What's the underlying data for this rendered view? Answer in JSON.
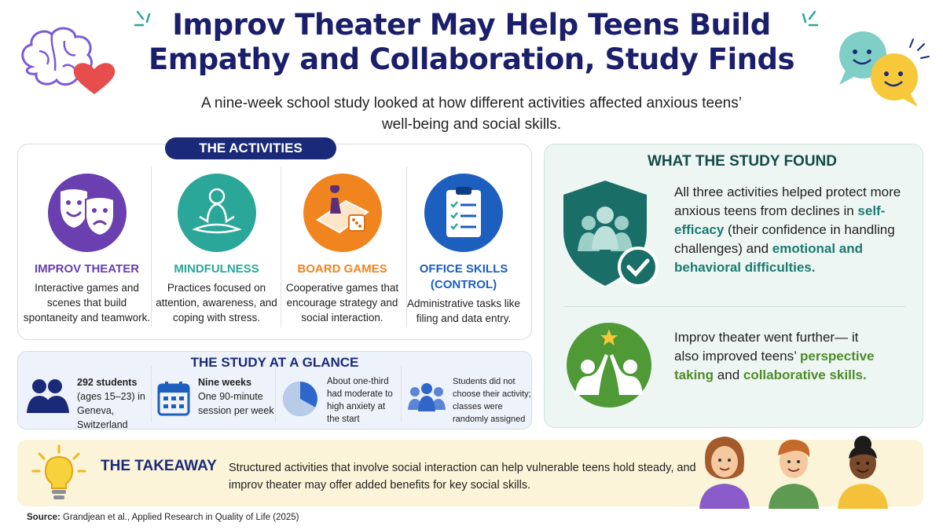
{
  "title": "Improv Theater May Help Teens Build Empathy and Collaboration, Study Finds",
  "subtitle": "A nine-week school study looked at how different activities affected anxious teens’ well-being and social skills.",
  "activities": {
    "heading": "THE ACTIVITIES",
    "items": [
      {
        "title": "IMPROV THEATER",
        "desc": "Interactive games and scenes that build spontaneity and teamwork.",
        "color": "#6a3fb0",
        "icon": "theater-masks-icon"
      },
      {
        "title": "MINDFULNESS",
        "desc": "Practices focused on attention, awareness, and coping with stress.",
        "color": "#2ba79a",
        "icon": "meditation-icon"
      },
      {
        "title": "BOARD GAMES",
        "desc": "Cooperative games that encourage strategy and social interaction.",
        "color": "#f0841f",
        "icon": "board-game-icon"
      },
      {
        "title": "OFFICE SKILLS (CONTROL)",
        "desc": "Administrative tasks like filing and data entry.",
        "color": "#1c5fbf",
        "icon": "clipboard-checklist-icon"
      }
    ]
  },
  "glance": {
    "heading": "THE STUDY AT A GLANCE",
    "items": [
      {
        "bold": "292 students",
        "text": "(ages 15–23) in Geneva, Switzerland",
        "icon": "people-icon"
      },
      {
        "bold": "Nine weeks",
        "text": "One 90-minute session per week",
        "icon": "calendar-icon"
      },
      {
        "bold": "",
        "text": "About one-third had moderate to high anxiety at the start",
        "icon": "pie-chart-icon",
        "pie_fraction": 0.33
      },
      {
        "bold": "",
        "text": "Students did not choose their activity; classes were randomly assigned",
        "icon": "group-icon"
      }
    ]
  },
  "findings": {
    "heading": "WHAT THE STUDY FOUND",
    "first": {
      "pre": "All three activities helped protect more anxious teens from declines in ",
      "hl1": "self-efficacy",
      "mid": " (their confidence in handling challenges) and ",
      "hl2": "emotional and behavioral difficulties."
    },
    "second": {
      "pre": "Improv theater went further— it also improved teens’ ",
      "hl1": "perspective taking",
      "mid": " and ",
      "hl2": "collaborative skills."
    }
  },
  "takeaway": {
    "heading": "THE TAKEAWAY",
    "text": "Structured activities that involve social interaction can help vulnerable teens hold steady, and improv theater may offer added benefits for key social skills."
  },
  "source": {
    "label": "Source:",
    "citation": "Grandjean et al., Applied Research in Quality of Life (2025)"
  }
}
